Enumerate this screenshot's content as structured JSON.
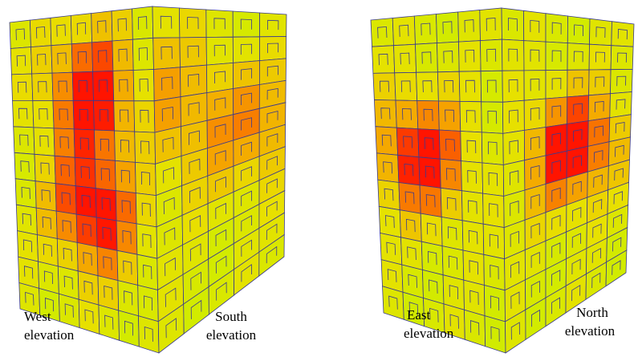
{
  "labels": {
    "west": {
      "lines": [
        "West",
        "elevation"
      ]
    },
    "south": {
      "lines": [
        "South",
        "elevation"
      ]
    },
    "east": {
      "lines": [
        "East",
        "elevation"
      ]
    },
    "north": {
      "lines": [
        "North",
        "elevation"
      ]
    }
  }
}
